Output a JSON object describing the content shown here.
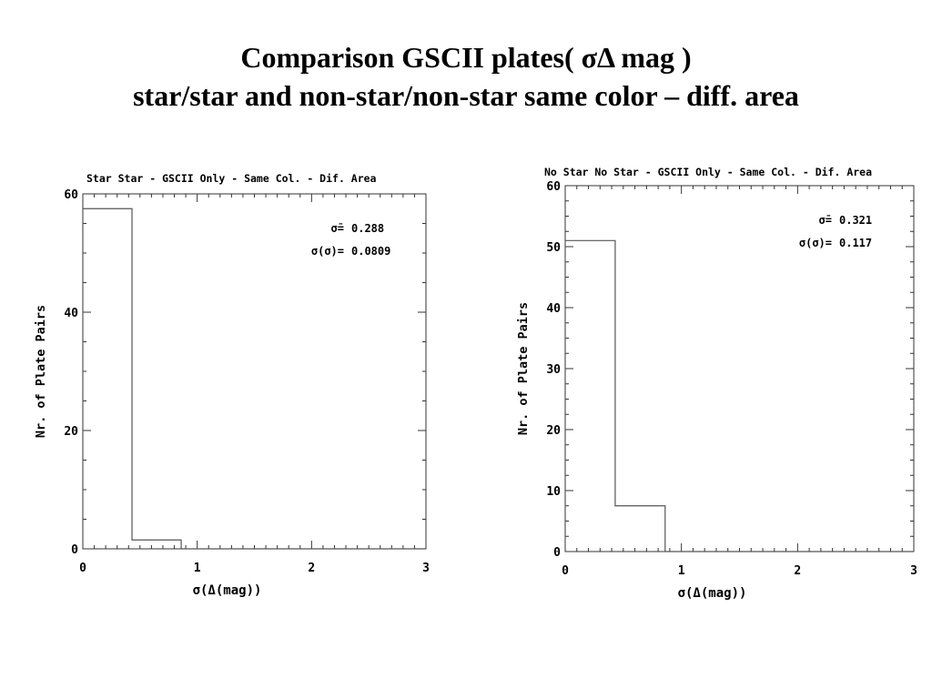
{
  "slide": {
    "title_line1": "Comparison GSCII plates( σΔ mag )",
    "title_line2": "star/star and non-star/non-star same color – diff. area"
  },
  "chart_data": [
    {
      "type": "bar",
      "title": "Star Star - GSCII Only - Same Col. - Dif. Area",
      "xlabel": "σ(Δ(mag))",
      "ylabel": "Nr. of Plate Pairs",
      "xlim": [
        0,
        3
      ],
      "ylim": [
        0,
        60
      ],
      "xticks": [
        "0",
        "1",
        "2",
        "3"
      ],
      "yticks": [
        "0",
        "20",
        "40",
        "60"
      ],
      "ytick_values": [
        0,
        20,
        40,
        60
      ],
      "bin_edges": [
        0,
        0.43,
        0.86,
        1.29,
        1.72,
        2.15,
        2.58,
        3.0
      ],
      "values": [
        57.5,
        1.5,
        0,
        0,
        0,
        0,
        0
      ],
      "grid": false,
      "annotations": [
        {
          "label": "σ̄=",
          "value": "0.288"
        },
        {
          "label": "σ(σ)=",
          "value": "0.0809"
        }
      ]
    },
    {
      "type": "bar",
      "title": "No Star No Star - GSCII Only - Same Col. - Dif. Area",
      "xlabel": "σ(Δ(mag))",
      "ylabel": "Nr. of Plate Pairs",
      "xlim": [
        0,
        3
      ],
      "ylim": [
        0,
        60
      ],
      "xticks": [
        "0",
        "1",
        "2",
        "3"
      ],
      "yticks": [
        "0",
        "10",
        "20",
        "30",
        "40",
        "50",
        "60"
      ],
      "ytick_values": [
        0,
        10,
        20,
        30,
        40,
        50,
        60
      ],
      "bin_edges": [
        0,
        0.43,
        0.86,
        1.29,
        1.72,
        2.15,
        2.58,
        3.0
      ],
      "values": [
        51,
        7.5,
        0,
        0,
        0,
        0,
        0
      ],
      "grid": false,
      "annotations": [
        {
          "label": "σ̄=",
          "value": "0.321"
        },
        {
          "label": "σ(σ)=",
          "value": "0.117"
        }
      ]
    }
  ]
}
